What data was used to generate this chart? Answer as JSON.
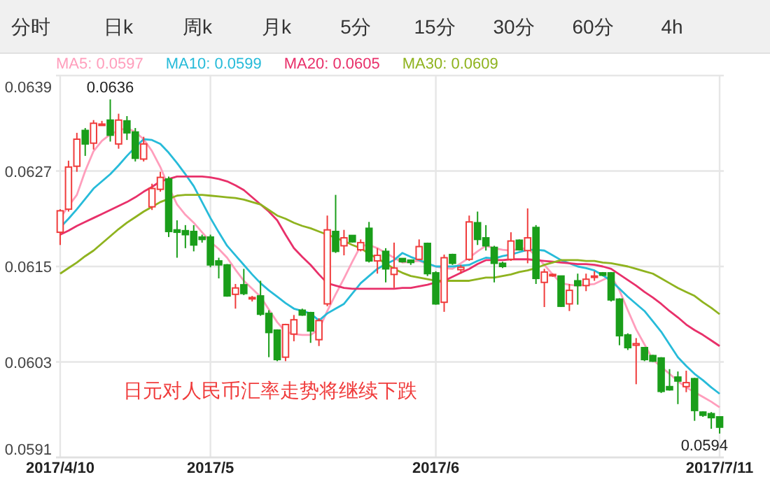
{
  "chart_data": {
    "type": "candlestick",
    "categories": [
      "2017/4/10",
      null,
      null,
      null,
      null,
      null,
      null,
      null,
      null,
      null,
      null,
      null,
      null,
      null,
      null,
      null,
      null,
      null,
      "2017/5",
      null,
      null,
      null,
      null,
      null,
      null,
      null,
      null,
      null,
      null,
      null,
      null,
      null,
      null,
      null,
      null,
      null,
      null,
      null,
      null,
      null,
      null,
      null,
      null,
      null,
      null,
      "2017/6",
      null,
      null,
      null,
      null,
      null,
      null,
      null,
      null,
      null,
      null,
      null,
      null,
      null,
      null,
      null,
      null,
      null,
      null,
      null,
      null,
      null,
      null,
      null,
      null,
      null,
      null,
      null,
      null,
      null,
      null,
      null,
      null,
      null,
      "2017/7/11"
    ],
    "ohlc": [
      [
        0.06193,
        0.06222,
        0.06177,
        0.0622
      ],
      [
        0.06222,
        0.06283,
        0.06219,
        0.06275
      ],
      [
        0.06276,
        0.06318,
        0.06269,
        0.0631
      ],
      [
        0.06321,
        0.06324,
        0.06289,
        0.06304
      ],
      [
        0.06305,
        0.06334,
        0.06297,
        0.0633
      ],
      [
        0.06328,
        0.06333,
        0.06327,
        0.06329
      ],
      [
        0.06334,
        0.0636,
        0.06307,
        0.06315
      ],
      [
        0.06304,
        0.06342,
        0.06298,
        0.06334
      ],
      [
        0.06333,
        0.06339,
        0.06309,
        0.06318
      ],
      [
        0.06319,
        0.06324,
        0.06282,
        0.06286
      ],
      [
        0.06285,
        0.06313,
        0.06282,
        0.06304
      ],
      [
        0.06225,
        0.06254,
        0.06221,
        0.06248
      ],
      [
        0.06247,
        0.06269,
        0.06244,
        0.06262
      ],
      [
        0.0626,
        0.06263,
        0.06187,
        0.06194
      ],
      [
        0.06196,
        0.06208,
        0.06161,
        0.06193
      ],
      [
        0.06195,
        0.06202,
        0.06173,
        0.0619
      ],
      [
        0.06194,
        0.06202,
        0.06169,
        0.06177
      ],
      [
        0.06187,
        0.0619,
        0.0618,
        0.06184
      ],
      [
        0.06187,
        0.0619,
        0.06149,
        0.06152
      ],
      [
        0.06157,
        0.06161,
        0.06135,
        0.06152
      ],
      [
        0.06152,
        0.06153,
        0.06112,
        0.06113
      ],
      [
        0.06115,
        0.06128,
        0.06097,
        0.06123
      ],
      [
        0.06127,
        0.06147,
        0.06114,
        0.06116
      ],
      [
        0.0611,
        0.06113,
        0.06106,
        0.06111
      ],
      [
        0.06113,
        0.06132,
        0.06088,
        0.0609
      ],
      [
        0.06091,
        0.06095,
        0.06036,
        0.06067
      ],
      [
        0.0607,
        0.06071,
        0.06031,
        0.06033
      ],
      [
        0.06036,
        0.06078,
        0.06031,
        0.06077
      ],
      [
        0.06065,
        0.06089,
        0.06056,
        0.06083
      ],
      [
        0.06095,
        0.06097,
        0.06088,
        0.06089
      ],
      [
        0.06092,
        0.06093,
        0.06054,
        0.06069
      ],
      [
        0.06058,
        0.06085,
        0.0605,
        0.06082
      ],
      [
        0.06103,
        0.06214,
        0.061,
        0.06196
      ],
      [
        0.06194,
        0.0624,
        0.06167,
        0.06169
      ],
      [
        0.06176,
        0.06196,
        0.06164,
        0.06186
      ],
      [
        0.06189,
        0.06189,
        0.0618,
        0.06181
      ],
      [
        0.06171,
        0.06184,
        0.06169,
        0.0618
      ],
      [
        0.06198,
        0.06206,
        0.06155,
        0.06157
      ],
      [
        0.06157,
        0.06173,
        0.06141,
        0.06164
      ],
      [
        0.06169,
        0.06173,
        0.0613,
        0.06147
      ],
      [
        0.0614,
        0.0618,
        0.06123,
        0.06148
      ],
      [
        0.0616,
        0.0616,
        0.06155,
        0.06156
      ],
      [
        0.06158,
        0.06158,
        0.06152,
        0.06155
      ],
      [
        0.06159,
        0.06184,
        0.06158,
        0.06175
      ],
      [
        0.06179,
        0.0618,
        0.06138,
        0.06141
      ],
      [
        0.06142,
        0.06144,
        0.06102,
        0.06103
      ],
      [
        0.06105,
        0.06165,
        0.06093,
        0.06161
      ],
      [
        0.06165,
        0.06166,
        0.06152,
        0.06154
      ],
      [
        0.06146,
        0.06152,
        0.06141,
        0.06149
      ],
      [
        0.06159,
        0.06214,
        0.06157,
        0.06206
      ],
      [
        0.06205,
        0.06219,
        0.06177,
        0.06184
      ],
      [
        0.06186,
        0.06202,
        0.0617,
        0.06176
      ],
      [
        0.06174,
        0.06176,
        0.0613,
        0.06154
      ],
      [
        0.06154,
        0.06156,
        0.06148,
        0.0615
      ],
      [
        0.06159,
        0.06193,
        0.06157,
        0.06182
      ],
      [
        0.06183,
        0.06184,
        0.0617,
        0.06171
      ],
      [
        0.0617,
        0.06223,
        0.06154,
        0.06186
      ],
      [
        0.06199,
        0.06202,
        0.06128,
        0.06135
      ],
      [
        0.0613,
        0.06147,
        0.06099,
        0.06143
      ],
      [
        0.06139,
        0.06141,
        0.06137,
        0.0614
      ],
      [
        0.06138,
        0.06138,
        0.06099,
        0.061
      ],
      [
        0.06103,
        0.06128,
        0.06094,
        0.0612
      ],
      [
        0.06132,
        0.06141,
        0.06102,
        0.06126
      ],
      [
        0.06126,
        0.06141,
        0.06119,
        0.06134
      ],
      [
        0.06137,
        0.06144,
        0.06132,
        0.06138
      ],
      [
        0.06142,
        0.06143,
        0.06138,
        0.06139
      ],
      [
        0.06142,
        0.06143,
        0.06106,
        0.06108
      ],
      [
        0.06109,
        0.0611,
        0.06051,
        0.06063
      ],
      [
        0.06064,
        0.06066,
        0.06045,
        0.06048
      ],
      [
        0.06051,
        0.0606,
        0.06002,
        0.06053
      ],
      [
        0.06048,
        0.06048,
        0.06031,
        0.06033
      ],
      [
        0.06038,
        0.06039,
        0.0603,
        0.06031
      ],
      [
        0.06035,
        0.06036,
        0.05991,
        0.05993
      ],
      [
        0.05999,
        0.06021,
        0.05994,
        0.05995
      ],
      [
        0.06011,
        0.06018,
        0.05977,
        0.06006
      ],
      [
        0.05999,
        0.06019,
        0.05992,
        0.06004
      ],
      [
        0.06009,
        0.0601,
        0.05956,
        0.05969
      ],
      [
        0.05967,
        0.05968,
        0.05961,
        0.05963
      ],
      [
        0.05965,
        0.05967,
        0.05946,
        0.0596
      ],
      [
        0.05961,
        0.05961,
        0.0594,
        0.05948
      ]
    ],
    "series": [
      {
        "type": "line",
        "name": "MA5: 0.0597",
        "color": "#ff9ebc",
        "values": [
          0.06211,
          0.06226,
          0.0624,
          0.0627,
          0.06295,
          0.06308,
          0.06316,
          0.06321,
          0.06324,
          0.06319,
          0.0631,
          0.06295,
          0.06275,
          0.0625,
          0.06228,
          0.06215,
          0.06205,
          0.06193,
          0.06181,
          0.06172,
          0.06161,
          0.06146,
          0.06132,
          0.06122,
          0.06112,
          0.06096,
          0.0608,
          0.06068,
          0.06065,
          0.06064,
          0.06064,
          0.06071,
          0.06094,
          0.06115,
          0.06135,
          0.06156,
          0.06176,
          0.06177,
          0.06173,
          0.06167,
          0.06161,
          0.06155,
          0.06156,
          0.06157,
          0.06153,
          0.0615,
          0.06148,
          0.06147,
          0.06154,
          0.06161,
          0.06169,
          0.06176,
          0.06173,
          0.06171,
          0.0617,
          0.06172,
          0.06173,
          0.06163,
          0.06152,
          0.0614,
          0.06129,
          0.06127,
          0.06126,
          0.06127,
          0.06128,
          0.06133,
          0.06138,
          0.0612,
          0.06095,
          0.06071,
          0.06052,
          0.06033,
          0.06024,
          0.06015,
          0.06006,
          0.05998,
          0.05992,
          0.05986,
          0.0598,
          0.05973
        ]
      },
      {
        "type": "line",
        "name": "MA10: 0.0599",
        "color": "#27bbd9",
        "values": [
          0.06199,
          0.0621,
          0.06222,
          0.06235,
          0.06248,
          0.06257,
          0.06266,
          0.06277,
          0.06289,
          0.063,
          0.0631,
          0.06309,
          0.06304,
          0.06293,
          0.0628,
          0.06266,
          0.06251,
          0.06231,
          0.06211,
          0.06193,
          0.06176,
          0.06164,
          0.06152,
          0.0614,
          0.06129,
          0.0612,
          0.06112,
          0.06104,
          0.06097,
          0.06094,
          0.06091,
          0.06082,
          0.06091,
          0.06097,
          0.06103,
          0.06116,
          0.06129,
          0.06138,
          0.06147,
          0.06153,
          0.06158,
          0.06167,
          0.06162,
          0.06158,
          0.06154,
          0.0615,
          0.0615,
          0.0615,
          0.06151,
          0.06152,
          0.06157,
          0.06161,
          0.0616,
          0.06163,
          0.06165,
          0.06168,
          0.06171,
          0.06171,
          0.0617,
          0.06164,
          0.06158,
          0.06154,
          0.0615,
          0.06148,
          0.06145,
          0.06139,
          0.06132,
          0.06122,
          0.06112,
          0.06103,
          0.06094,
          0.06081,
          0.06068,
          0.06052,
          0.06036,
          0.06025,
          0.06015,
          0.06007,
          0.05998,
          0.0599
        ]
      },
      {
        "type": "line",
        "name": "MA20: 0.0605",
        "color": "#e8306a",
        "values": [
          0.0619,
          0.06195,
          0.06201,
          0.06206,
          0.06211,
          0.06216,
          0.06221,
          0.06226,
          0.06231,
          0.06237,
          0.06244,
          0.0625,
          0.06257,
          0.0626,
          0.06263,
          0.06263,
          0.06263,
          0.06263,
          0.06262,
          0.0626,
          0.06257,
          0.06252,
          0.06246,
          0.06237,
          0.06228,
          0.06219,
          0.06208,
          0.0619,
          0.06173,
          0.06162,
          0.06152,
          0.0614,
          0.06129,
          0.06126,
          0.06123,
          0.06122,
          0.06122,
          0.06122,
          0.06122,
          0.06122,
          0.06122,
          0.06123,
          0.06123,
          0.06125,
          0.06127,
          0.0613,
          0.06132,
          0.06137,
          0.06142,
          0.06147,
          0.06153,
          0.06158,
          0.06158,
          0.06158,
          0.06159,
          0.06159,
          0.06159,
          0.06158,
          0.06157,
          0.06156,
          0.06155,
          0.06154,
          0.06153,
          0.06153,
          0.06152,
          0.0615,
          0.06147,
          0.0614,
          0.06133,
          0.06126,
          0.06118,
          0.06111,
          0.06103,
          0.06094,
          0.06086,
          0.06077,
          0.0607,
          0.06064,
          0.06057,
          0.0605
        ]
      },
      {
        "type": "line",
        "name": "MA30: 0.0609",
        "color": "#8fb31f",
        "values": [
          0.06141,
          0.06148,
          0.06155,
          0.06163,
          0.0617,
          0.06179,
          0.06188,
          0.06197,
          0.06205,
          0.06212,
          0.06219,
          0.06225,
          0.06231,
          0.06235,
          0.06239,
          0.0624,
          0.0624,
          0.0624,
          0.06239,
          0.06238,
          0.06237,
          0.06236,
          0.06234,
          0.06231,
          0.06228,
          0.06221,
          0.06214,
          0.0621,
          0.06205,
          0.06201,
          0.06198,
          0.06194,
          0.0619,
          0.06186,
          0.06182,
          0.06177,
          0.06173,
          0.06166,
          0.0616,
          0.06154,
          0.06147,
          0.06142,
          0.06138,
          0.06136,
          0.06134,
          0.06132,
          0.06132,
          0.06132,
          0.06132,
          0.06132,
          0.06134,
          0.06136,
          0.06136,
          0.06138,
          0.0614,
          0.06143,
          0.06145,
          0.06148,
          0.06152,
          0.06155,
          0.06158,
          0.06158,
          0.06158,
          0.06157,
          0.06157,
          0.06155,
          0.06154,
          0.06152,
          0.0615,
          0.06147,
          0.06144,
          0.06141,
          0.06135,
          0.06129,
          0.06123,
          0.06118,
          0.06113,
          0.06105,
          0.06098,
          0.0609
        ]
      }
    ],
    "ylim": [
      0.0591,
      0.0639
    ],
    "yticks": [
      0.0591,
      0.0603,
      0.0615,
      0.0627,
      0.0639
    ],
    "grid": true,
    "legend": "top",
    "annotations": [
      "分时",
      "日k",
      "周k",
      "月k",
      "5分",
      "15分",
      "30分",
      "60分",
      "4h",
      "日元对人民币汇率走势将继续下跌",
      {
        "text": "0.0636",
        "y": 0.0636
      },
      {
        "text": "0.0594",
        "x": "2017/7/11",
        "y": 0.0594
      }
    ]
  }
}
